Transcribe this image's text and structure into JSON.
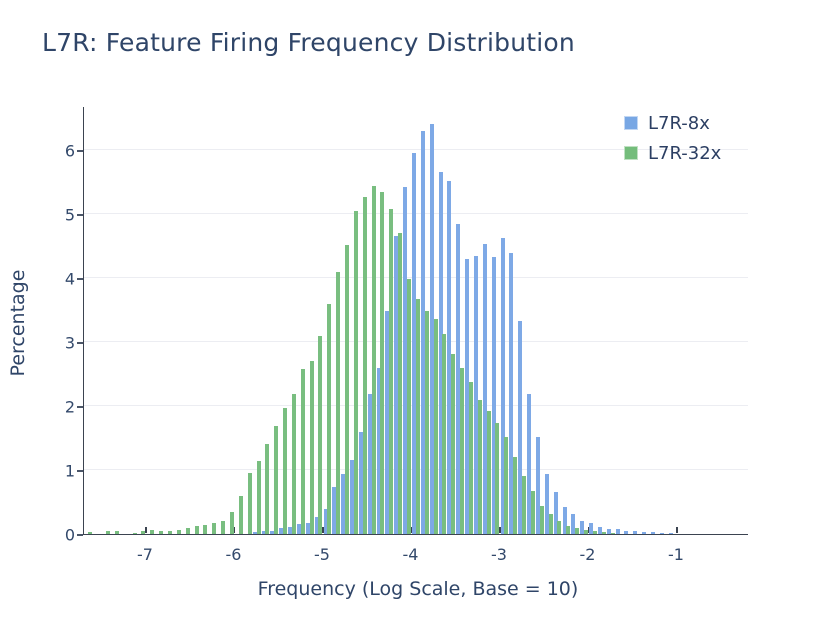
{
  "title": "L7R: Feature Firing Frequency Distribution",
  "chart_data": {
    "type": "bar",
    "subtype": "grouped-histogram",
    "title": "L7R: Feature Firing Frequency Distribution",
    "xlabel": "Frequency (Log Scale, Base = 10)",
    "ylabel": "Percentage",
    "x_ticks": [
      -7,
      -6,
      -5,
      -4,
      -3,
      -2,
      -1
    ],
    "y_ticks": [
      0,
      1,
      2,
      3,
      4,
      5,
      6
    ],
    "xlim": [
      -7.7,
      -0.2
    ],
    "ylim": [
      0,
      6.7
    ],
    "bin_width": 0.1,
    "grid": true,
    "legend_position": "top-right",
    "legend": [
      {
        "label": "L7R-8x",
        "color": "#78A7E4"
      },
      {
        "label": "L7R-32x",
        "color": "#74BD7B"
      }
    ],
    "series": [
      {
        "name": "L7R-8x",
        "color": "#7EA9E6",
        "start_x": -5.8,
        "step": 0.1,
        "values": [
          0.03,
          0.04,
          0.05,
          0.09,
          0.11,
          0.15,
          0.18,
          0.27,
          0.39,
          0.73,
          0.94,
          1.15,
          1.59,
          2.19,
          2.6,
          3.49,
          4.66,
          5.42,
          5.96,
          6.3,
          6.41,
          5.65,
          5.52,
          4.84,
          4.29,
          4.35,
          4.53,
          4.33,
          4.63,
          4.39,
          3.33,
          2.19,
          1.51,
          0.94,
          0.66,
          0.42,
          0.31,
          0.2,
          0.18,
          0.11,
          0.08,
          0.08,
          0.05,
          0.04,
          0.03,
          0.03,
          0.02,
          0.01
        ]
      },
      {
        "name": "L7R-32x",
        "color": "#79BE80",
        "start_x": -7.6,
        "step": 0.1,
        "values": [
          0.03,
          0.0,
          0.05,
          0.04,
          0.0,
          0.02,
          0.04,
          0.06,
          0.05,
          0.05,
          0.07,
          0.1,
          0.12,
          0.14,
          0.18,
          0.21,
          0.35,
          0.6,
          0.95,
          1.14,
          1.41,
          1.69,
          1.97,
          2.19,
          2.58,
          2.71,
          3.09,
          3.6,
          4.1,
          4.52,
          5.05,
          5.27,
          5.44,
          5.35,
          5.08,
          4.7,
          3.98,
          3.67,
          3.49,
          3.36,
          3.13,
          2.81,
          2.6,
          2.37,
          2.1,
          1.93,
          1.74,
          1.51,
          1.2,
          0.91,
          0.68,
          0.44,
          0.31,
          0.21,
          0.13,
          0.1,
          0.06,
          0.04,
          0.03,
          0.02
        ]
      }
    ]
  }
}
